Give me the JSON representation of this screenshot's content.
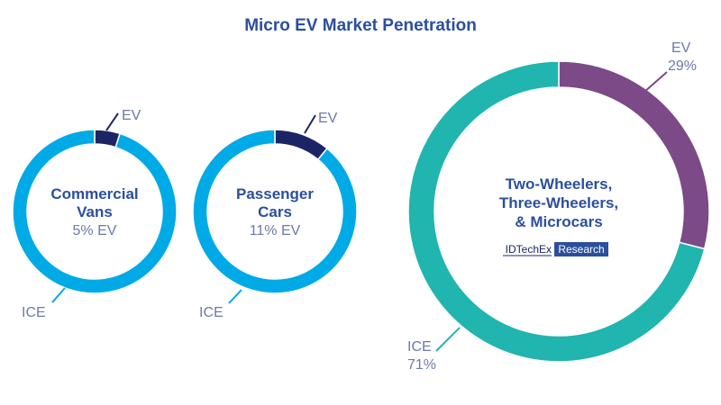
{
  "chart_data": [
    {
      "type": "pie",
      "donut": true,
      "title": "Commercial Vans",
      "subtitle": "5% EV",
      "categories": [
        "EV",
        "ICE"
      ],
      "values": [
        5,
        95
      ],
      "colors": [
        "#1b2566",
        "#00aae6"
      ],
      "labels": [
        "EV",
        "ICE"
      ]
    },
    {
      "type": "pie",
      "donut": true,
      "title": "Passenger Cars",
      "subtitle": "11% EV",
      "categories": [
        "EV",
        "ICE"
      ],
      "values": [
        11,
        89
      ],
      "colors": [
        "#1b2566",
        "#00aae6"
      ],
      "labels": [
        "EV",
        "ICE"
      ]
    },
    {
      "type": "pie",
      "donut": true,
      "title": "Two-Wheelers, Three-Wheelers, & Microcars",
      "categories": [
        "EV",
        "ICE"
      ],
      "values": [
        29,
        71
      ],
      "colors": [
        "#7b4a87",
        "#20b5ae"
      ],
      "labels": [
        "EV 29%",
        "ICE 71%"
      ]
    }
  ],
  "page_title": "Micro EV Market Penetration",
  "center_lines": [
    [
      "Commercial",
      "Vans"
    ],
    [
      "Passenger",
      "Cars"
    ],
    [
      "Two-Wheelers,",
      "Three-Wheelers,",
      "& Microcars"
    ]
  ],
  "logo": {
    "left": "IDTechEx",
    "right": "Research"
  },
  "label_lines": [
    [
      [
        "EV"
      ],
      [
        "ICE"
      ]
    ],
    [
      [
        "EV"
      ],
      [
        "ICE"
      ]
    ],
    [
      [
        "EV",
        "29%"
      ],
      [
        "ICE",
        "71%"
      ]
    ]
  ]
}
